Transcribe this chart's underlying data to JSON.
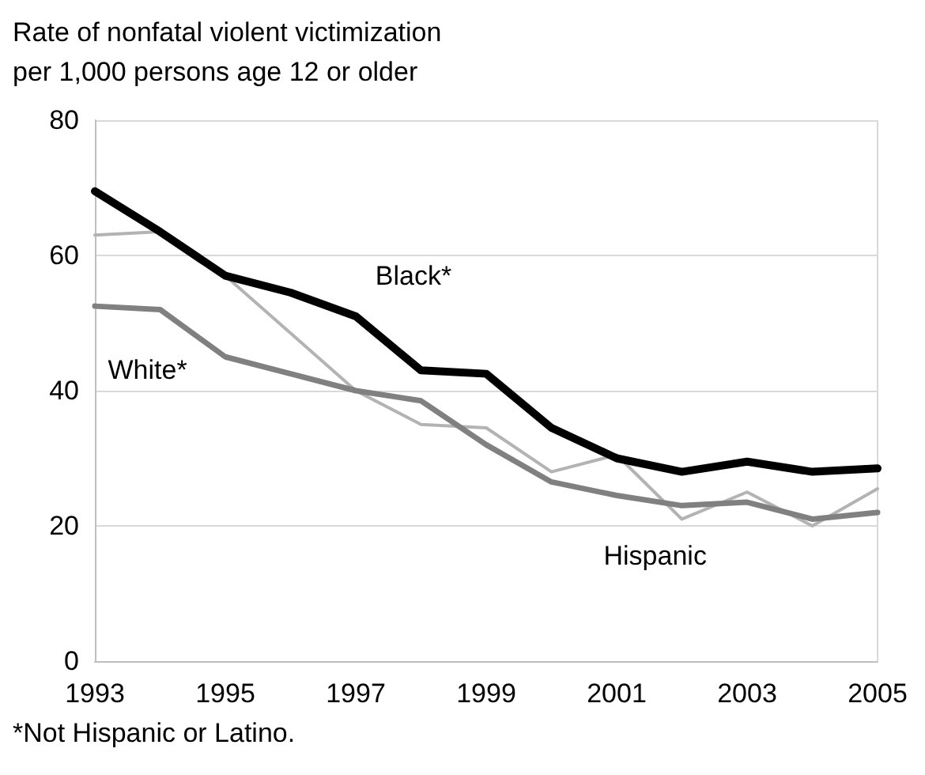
{
  "chart_data": {
    "type": "line",
    "ylabel": "Rate of nonfatal violent victimization\nper 1,000 persons age 12 or older",
    "x": [
      1993,
      1994,
      1995,
      1996,
      1997,
      1998,
      1999,
      2000,
      2001,
      2002,
      2003,
      2004,
      2005
    ],
    "series": [
      {
        "name": "Black*",
        "color": "#000000",
        "values": [
          69.5,
          63.5,
          57,
          54.5,
          51,
          43,
          42.5,
          34.5,
          30,
          28,
          29.5,
          28,
          28.5
        ]
      },
      {
        "name": "White*",
        "color": "#808080",
        "values": [
          52.5,
          52,
          45,
          42.5,
          40,
          38.5,
          32,
          26.5,
          24.5,
          23,
          23.5,
          21,
          22
        ]
      },
      {
        "name": "Hispanic",
        "color": "#b3b3b3",
        "values": [
          63,
          63.5,
          57,
          48.5,
          40,
          35,
          34.5,
          28,
          30.5,
          21,
          25,
          20,
          25.5
        ]
      }
    ],
    "xlim": [
      1993,
      2005
    ],
    "xticks": [
      1993,
      1995,
      1997,
      1999,
      2001,
      2003,
      2005
    ],
    "ylim": [
      0,
      80
    ],
    "yticks": [
      0,
      20,
      40,
      60,
      80
    ],
    "grid": "y",
    "legend": false,
    "marker": "none",
    "annotations": [
      "*Not Hispanic or Latino."
    ]
  }
}
